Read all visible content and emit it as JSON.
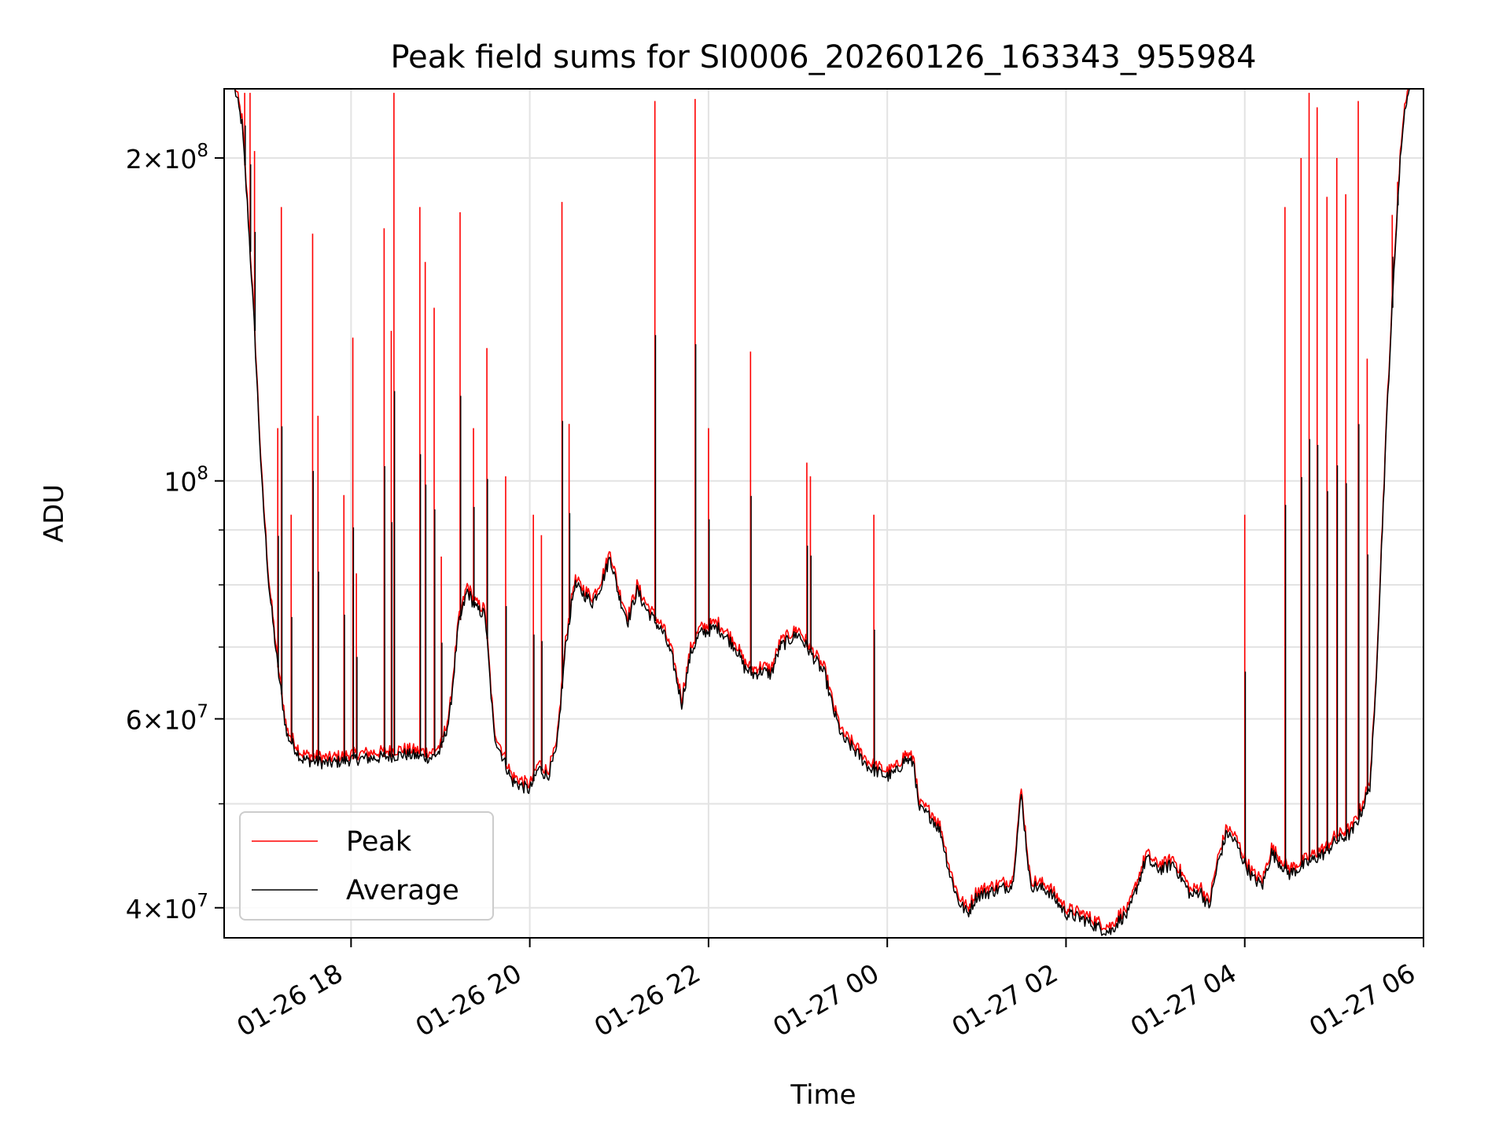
{
  "chart_data": {
    "type": "line",
    "title": "Peak field sums for SI0006_20260126_163343_955984",
    "xlabel": "Time",
    "ylabel": "ADU",
    "yscale": "log",
    "x_unit": "hours since 2026-01-26 16:00",
    "xlim": [
      16.58,
      30.0
    ],
    "ylim": [
      37500000,
      232000000
    ],
    "x_ticks": [
      {
        "value": 18,
        "label": "01-26 18"
      },
      {
        "value": 20,
        "label": "01-26 20"
      },
      {
        "value": 22,
        "label": "01-26 22"
      },
      {
        "value": 24,
        "label": "01-27 00"
      },
      {
        "value": 26,
        "label": "01-27 02"
      },
      {
        "value": 28,
        "label": "01-27 04"
      },
      {
        "value": 30,
        "label": "01-27 06"
      }
    ],
    "y_ticks": [
      {
        "value": 40000000,
        "base": "4",
        "exp": "7"
      },
      {
        "value": 60000000,
        "base": "6",
        "exp": "7"
      },
      {
        "value": 100000000,
        "base": "",
        "exp": "8"
      },
      {
        "value": 200000000,
        "base": "2",
        "exp": "8"
      }
    ],
    "y_minor_ticks": [
      50000000,
      70000000,
      80000000,
      90000000
    ],
    "grid": true,
    "legend": {
      "position": "lower-left",
      "entries": [
        "Peak",
        "Average"
      ]
    },
    "series": [
      {
        "name": "Average",
        "color": "#000000",
        "points": [
          [
            16.58,
            232000000
          ],
          [
            16.7,
            232000000
          ],
          [
            16.78,
            215000000
          ],
          [
            16.85,
            175000000
          ],
          [
            16.92,
            138000000
          ],
          [
            17.0,
            100000000
          ],
          [
            17.08,
            80000000
          ],
          [
            17.18,
            67000000
          ],
          [
            17.28,
            58000000
          ],
          [
            17.45,
            55000000
          ],
          [
            17.75,
            54500000
          ],
          [
            18.0,
            55000000
          ],
          [
            18.3,
            55200000
          ],
          [
            18.6,
            55600000
          ],
          [
            18.9,
            55200000
          ],
          [
            19.0,
            56000000
          ],
          [
            19.1,
            60000000
          ],
          [
            19.2,
            73000000
          ],
          [
            19.3,
            79000000
          ],
          [
            19.4,
            76000000
          ],
          [
            19.5,
            75000000
          ],
          [
            19.6,
            58000000
          ],
          [
            19.8,
            52500000
          ],
          [
            20.0,
            51500000
          ],
          [
            20.1,
            54000000
          ],
          [
            20.2,
            53000000
          ],
          [
            20.3,
            56000000
          ],
          [
            20.4,
            70000000
          ],
          [
            20.5,
            80000000
          ],
          [
            20.7,
            77000000
          ],
          [
            20.8,
            80000000
          ],
          [
            20.9,
            85000000
          ],
          [
            21.0,
            78000000
          ],
          [
            21.1,
            74000000
          ],
          [
            21.2,
            79000000
          ],
          [
            21.3,
            76000000
          ],
          [
            21.4,
            74000000
          ],
          [
            21.5,
            72000000
          ],
          [
            21.6,
            68000000
          ],
          [
            21.7,
            62000000
          ],
          [
            21.8,
            69000000
          ],
          [
            21.9,
            72000000
          ],
          [
            22.1,
            73000000
          ],
          [
            22.3,
            70000000
          ],
          [
            22.4,
            67000000
          ],
          [
            22.5,
            66000000
          ],
          [
            22.6,
            66500000
          ],
          [
            22.7,
            66000000
          ],
          [
            22.8,
            70000000
          ],
          [
            22.9,
            71000000
          ],
          [
            23.0,
            72000000
          ],
          [
            23.1,
            70000000
          ],
          [
            23.3,
            66000000
          ],
          [
            23.4,
            61000000
          ],
          [
            23.5,
            57500000
          ],
          [
            23.6,
            56500000
          ],
          [
            23.8,
            54000000
          ],
          [
            24.0,
            53000000
          ],
          [
            24.1,
            53500000
          ],
          [
            24.2,
            55000000
          ],
          [
            24.3,
            54500000
          ],
          [
            24.35,
            49500000
          ],
          [
            24.5,
            48500000
          ],
          [
            24.6,
            47000000
          ],
          [
            24.7,
            43000000
          ],
          [
            24.8,
            40500000
          ],
          [
            24.9,
            39500000
          ],
          [
            25.0,
            41000000
          ],
          [
            25.2,
            41500000
          ],
          [
            25.4,
            42000000
          ],
          [
            25.5,
            51000000
          ],
          [
            25.6,
            42000000
          ],
          [
            25.8,
            41500000
          ],
          [
            26.0,
            39500000
          ],
          [
            26.2,
            39000000
          ],
          [
            26.4,
            38200000
          ],
          [
            26.5,
            38000000
          ],
          [
            26.6,
            39000000
          ],
          [
            26.7,
            39500000
          ],
          [
            26.8,
            42000000
          ],
          [
            26.9,
            44500000
          ],
          [
            27.0,
            43500000
          ],
          [
            27.1,
            43500000
          ],
          [
            27.2,
            44000000
          ],
          [
            27.3,
            42500000
          ],
          [
            27.4,
            41000000
          ],
          [
            27.5,
            41500000
          ],
          [
            27.6,
            40000000
          ],
          [
            27.7,
            44000000
          ],
          [
            27.8,
            47000000
          ],
          [
            27.9,
            46000000
          ],
          [
            28.0,
            44000000
          ],
          [
            28.1,
            42500000
          ],
          [
            28.2,
            42000000
          ],
          [
            28.3,
            45000000
          ],
          [
            28.5,
            43000000
          ],
          [
            28.7,
            44000000
          ],
          [
            28.9,
            45000000
          ],
          [
            29.0,
            46000000
          ],
          [
            29.2,
            47000000
          ],
          [
            29.3,
            49000000
          ],
          [
            29.4,
            52000000
          ],
          [
            29.45,
            60000000
          ],
          [
            29.5,
            75000000
          ],
          [
            29.55,
            95000000
          ],
          [
            29.6,
            120000000
          ],
          [
            29.65,
            145000000
          ],
          [
            29.7,
            175000000
          ],
          [
            29.75,
            205000000
          ],
          [
            29.8,
            225000000
          ],
          [
            29.85,
            232000000
          ],
          [
            30.0,
            232000000
          ]
        ]
      },
      {
        "name": "Peak",
        "color": "#ff0000",
        "spikes": [
          [
            16.81,
            230000000
          ],
          [
            16.87,
            230000000
          ],
          [
            16.92,
            203000000
          ],
          [
            17.18,
            112000000
          ],
          [
            17.22,
            180000000
          ],
          [
            17.33,
            93000000
          ],
          [
            17.57,
            170000000
          ],
          [
            17.63,
            115000000
          ],
          [
            17.92,
            97000000
          ],
          [
            18.02,
            136000000
          ],
          [
            18.06,
            82000000
          ],
          [
            18.37,
            172000000
          ],
          [
            18.45,
            138000000
          ],
          [
            18.48,
            230000000
          ],
          [
            18.77,
            180000000
          ],
          [
            18.83,
            160000000
          ],
          [
            18.93,
            145000000
          ],
          [
            19.01,
            85000000
          ],
          [
            19.22,
            178000000
          ],
          [
            19.37,
            112000000
          ],
          [
            19.52,
            133000000
          ],
          [
            19.73,
            101000000
          ],
          [
            20.04,
            93000000
          ],
          [
            20.13,
            89000000
          ],
          [
            20.36,
            182000000
          ],
          [
            20.44,
            113000000
          ],
          [
            21.4,
            226000000
          ],
          [
            21.85,
            227000000
          ],
          [
            22.0,
            112000000
          ],
          [
            22.47,
            132000000
          ],
          [
            23.1,
            104000000
          ],
          [
            23.14,
            101000000
          ],
          [
            23.85,
            93000000
          ],
          [
            28.0,
            93000000
          ],
          [
            28.45,
            180000000
          ],
          [
            28.63,
            200000000
          ],
          [
            28.72,
            230000000
          ],
          [
            28.81,
            223000000
          ],
          [
            28.92,
            184000000
          ],
          [
            29.03,
            200000000
          ],
          [
            29.13,
            185000000
          ],
          [
            29.27,
            226000000
          ],
          [
            29.37,
            130000000
          ],
          [
            29.65,
            177000000
          ],
          [
            29.71,
            190000000
          ]
        ]
      }
    ]
  }
}
